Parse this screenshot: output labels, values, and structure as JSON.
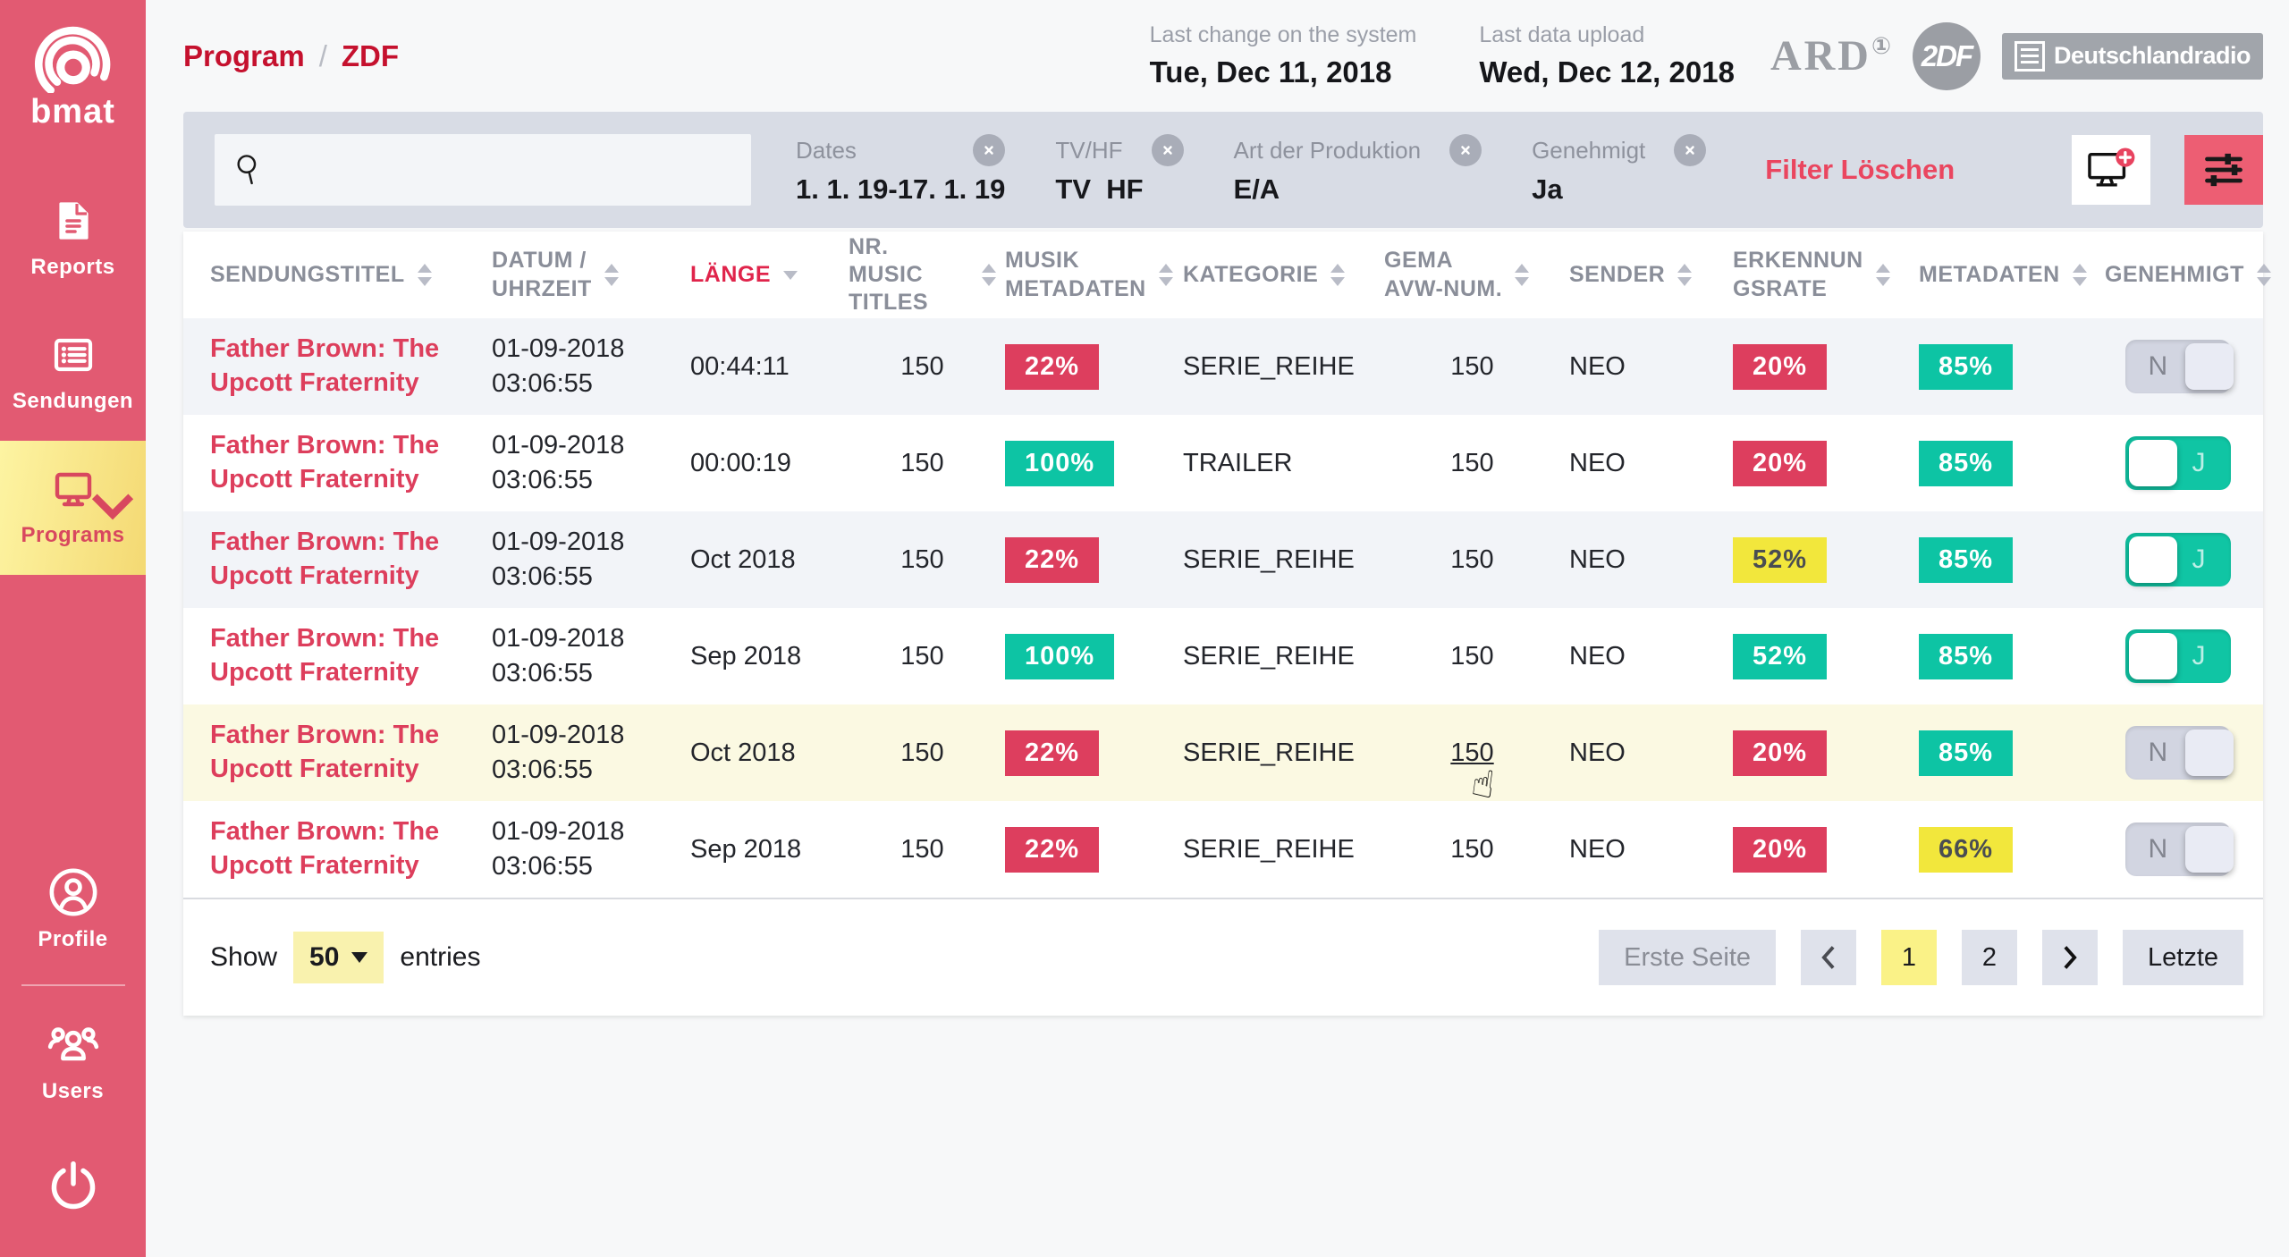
{
  "colors": {
    "sidebar_pink": "#e25a72",
    "active_gradient_start": "#fdf4a2",
    "active_gradient_end": "#f4d973",
    "breadcrumb_red": "#c5112e",
    "title_pink": "#dd3e5c",
    "badge_red": "#dd3e5e",
    "badge_teal": "#0dc4a4",
    "badge_yellow": "#f2e73c",
    "badge_yellow_text": "#4a4d52",
    "badge_text": "#ffffff",
    "toggle_on": "#10c5a4",
    "toggle_off": "#d2d5e1",
    "row_highlight": "#fbf9e2",
    "filterbar_bg": "#d8dce5",
    "page_active_yellow": "#faf287"
  },
  "sidebar": {
    "logo_text": "bmat",
    "nav": [
      {
        "label": "Reports",
        "icon": "reports-document-icon",
        "active": false
      },
      {
        "label": "Sendungen",
        "icon": "sendungen-list-icon",
        "active": false
      },
      {
        "label": "Programs",
        "icon": "programs-monitor-icon",
        "active": true
      }
    ],
    "bottom": [
      {
        "label": "Profile",
        "icon": "profile-user-icon"
      },
      {
        "label": "Users",
        "icon": "users-group-icon"
      }
    ]
  },
  "header": {
    "breadcrumb": {
      "items": [
        "Program",
        "ZDF"
      ],
      "separator": "/"
    },
    "meta": [
      {
        "label": "Last change on the system",
        "value": "Tue, Dec 11, 2018"
      },
      {
        "label": "Last data upload",
        "value": "Wed, Dec 12, 2018"
      }
    ],
    "logos": {
      "ard": "ARD",
      "ard_mark": "①",
      "zdf": "2DF",
      "deutschlandradio": "Deutschlandradio"
    }
  },
  "filter_bar": {
    "search": {
      "value": "",
      "placeholder": ""
    },
    "chips": [
      {
        "label": "Dates",
        "value": "1. 1. 19-17. 1. 19"
      },
      {
        "label": "TV/HF",
        "value": "TV  HF"
      },
      {
        "label": "Art der Produktion",
        "value": "E/A"
      },
      {
        "label": "Genehmigt",
        "value": "Ja"
      }
    ],
    "clear_label": "Filter Löschen"
  },
  "table": {
    "columns": [
      {
        "label": "SENDUNGSTITEL",
        "sort": "both",
        "active": false
      },
      {
        "label": "DATUM /\nUHRZEIT",
        "sort": "both",
        "active": false
      },
      {
        "label": "LÄNGE",
        "sort": "down",
        "active": true
      },
      {
        "label": "NR. MUSIC\nTITLES",
        "sort": "both",
        "active": false
      },
      {
        "label": "MUSIK\nMETADATEN",
        "sort": "both",
        "active": false
      },
      {
        "label": "KATEGORIE",
        "sort": "both",
        "active": false
      },
      {
        "label": "GEMA\nAVW-NUM.",
        "sort": "both",
        "active": false
      },
      {
        "label": "SENDER",
        "sort": "both",
        "active": false
      },
      {
        "label": "ERKENNUN\nGSRATE",
        "sort": "both",
        "active": false
      },
      {
        "label": "METADATEN",
        "sort": "both",
        "active": false
      },
      {
        "label": "GENEHMIGT",
        "sort": "both",
        "active": false
      }
    ],
    "rows": [
      {
        "title": "Father Brown: The\nUpcott Fraternity",
        "datetime": "01-09-2018\n03:06:55",
        "laenge": "00:44:11",
        "nr_music_titles": "150",
        "musik_metadaten": {
          "text": "22%",
          "color": "red"
        },
        "kategorie": "SERIE_REIHE",
        "gema_avw_num": "150",
        "sender": "NEO",
        "erkennungsrate": {
          "text": "20%",
          "color": "red"
        },
        "metadaten": {
          "text": "85%",
          "color": "teal"
        },
        "genehmigt": "N",
        "highlight": false,
        "cursor": false
      },
      {
        "title": "Father Brown: The\nUpcott Fraternity",
        "datetime": "01-09-2018\n03:06:55",
        "laenge": "00:00:19",
        "nr_music_titles": "150",
        "musik_metadaten": {
          "text": "100%",
          "color": "teal"
        },
        "kategorie": "TRAILER",
        "gema_avw_num": "150",
        "sender": "NEO",
        "erkennungsrate": {
          "text": "20%",
          "color": "red"
        },
        "metadaten": {
          "text": "85%",
          "color": "teal"
        },
        "genehmigt": "J",
        "highlight": false,
        "cursor": false
      },
      {
        "title": "Father Brown: The\nUpcott Fraternity",
        "datetime": "01-09-2018\n03:06:55",
        "laenge": "Oct 2018",
        "nr_music_titles": "150",
        "musik_metadaten": {
          "text": "22%",
          "color": "red"
        },
        "kategorie": "SERIE_REIHE",
        "gema_avw_num": "150",
        "sender": "NEO",
        "erkennungsrate": {
          "text": "52%",
          "color": "yellow"
        },
        "metadaten": {
          "text": "85%",
          "color": "teal"
        },
        "genehmigt": "J",
        "highlight": false,
        "cursor": false
      },
      {
        "title": "Father Brown: The\nUpcott Fraternity",
        "datetime": "01-09-2018\n03:06:55",
        "laenge": "Sep 2018",
        "nr_music_titles": "150",
        "musik_metadaten": {
          "text": "100%",
          "color": "teal"
        },
        "kategorie": "SERIE_REIHE",
        "gema_avw_num": "150",
        "sender": "NEO",
        "erkennungsrate": {
          "text": "52%",
          "color": "teal"
        },
        "metadaten": {
          "text": "85%",
          "color": "teal"
        },
        "genehmigt": "J",
        "highlight": false,
        "cursor": false
      },
      {
        "title": "Father Brown: The\nUpcott Fraternity",
        "datetime": "01-09-2018\n03:06:55",
        "laenge": "Oct 2018",
        "nr_music_titles": "150",
        "musik_metadaten": {
          "text": "22%",
          "color": "red"
        },
        "kategorie": "SERIE_REIHE",
        "gema_avw_num": "150",
        "sender": "NEO",
        "erkennungsrate": {
          "text": "20%",
          "color": "red"
        },
        "metadaten": {
          "text": "85%",
          "color": "teal"
        },
        "genehmigt": "N",
        "highlight": true,
        "cursor": true
      },
      {
        "title": "Father Brown: The\nUpcott Fraternity",
        "datetime": "01-09-2018\n03:06:55",
        "laenge": "Sep 2018",
        "nr_music_titles": "150",
        "musik_metadaten": {
          "text": "22%",
          "color": "red"
        },
        "kategorie": "SERIE_REIHE",
        "gema_avw_num": "150",
        "sender": "NEO",
        "erkennungsrate": {
          "text": "20%",
          "color": "red"
        },
        "metadaten": {
          "text": "66%",
          "color": "yellow"
        },
        "genehmigt": "N",
        "highlight": false,
        "cursor": false
      }
    ]
  },
  "pagination": {
    "show_label": "Show",
    "page_size": "50",
    "entries_label": "entries",
    "first_label": "Erste Seite",
    "pages": [
      "1",
      "2"
    ],
    "active_page": "1",
    "last_label": "Letzte"
  }
}
